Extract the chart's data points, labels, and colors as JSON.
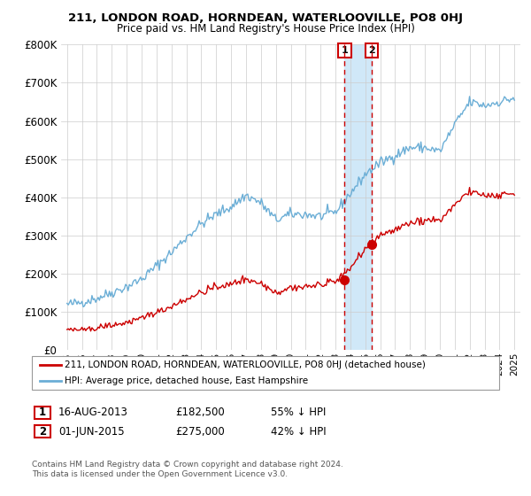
{
  "title": "211, LONDON ROAD, HORNDEAN, WATERLOOVILLE, PO8 0HJ",
  "subtitle": "Price paid vs. HM Land Registry's House Price Index (HPI)",
  "legend_line1": "211, LONDON ROAD, HORNDEAN, WATERLOOVILLE, PO8 0HJ (detached house)",
  "legend_line2": "HPI: Average price, detached house, East Hampshire",
  "annotation1_date": "16-AUG-2013",
  "annotation1_price": "£182,500",
  "annotation1_hpi": "55% ↓ HPI",
  "annotation2_date": "01-JUN-2015",
  "annotation2_price": "£275,000",
  "annotation2_hpi": "42% ↓ HPI",
  "footer1": "Contains HM Land Registry data © Crown copyright and database right 2024.",
  "footer2": "This data is licensed under the Open Government Licence v3.0.",
  "hpi_color": "#6baed6",
  "price_color": "#cc0000",
  "vline_color": "#cc0000",
  "shade_color": "#d0e8f8",
  "box_color": "#cc0000",
  "ylim": [
    0,
    800000
  ],
  "ylabel_ticks": [
    0,
    100000,
    200000,
    300000,
    400000,
    500000,
    600000,
    700000,
    800000
  ],
  "ylabel_labels": [
    "£0",
    "£100K",
    "£200K",
    "£300K",
    "£400K",
    "£500K",
    "£600K",
    "£700K",
    "£800K"
  ],
  "xmin": 1995,
  "xmax": 2025,
  "sale1_x": 2013.62,
  "sale1_y": 182500,
  "sale2_x": 2015.42,
  "sale2_y": 275000
}
